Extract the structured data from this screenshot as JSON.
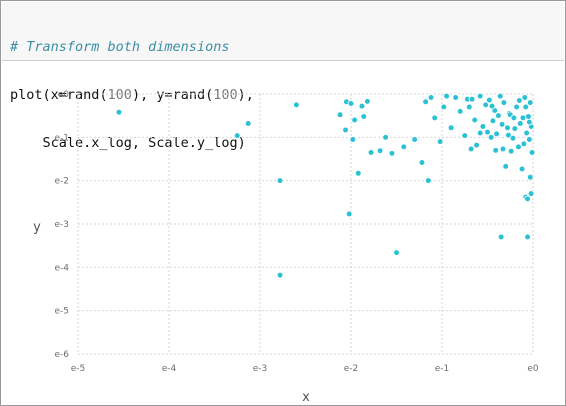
{
  "code": {
    "line1": "# Transform both dimensions",
    "line2_prefix": "plot(x=rand(",
    "line2_num1": "100",
    "line2_mid": "), y=rand(",
    "line2_num2": "100",
    "line2_suffix": "),",
    "line3": "    Scale.x_log, Scale.y_log)"
  },
  "chart_data": {
    "type": "scatter",
    "xlabel": "x",
    "ylabel": "y",
    "x_scale": "log",
    "y_scale": "log",
    "xlim_exp": [
      -5,
      0
    ],
    "ylim_exp": [
      -6,
      0
    ],
    "x_ticks": [
      "e-5",
      "e-4",
      "e-3",
      "e-2",
      "e-1",
      "e0"
    ],
    "y_ticks": [
      "e0",
      "e-1",
      "e-2",
      "e-3",
      "e-4",
      "e-5",
      "e-6"
    ],
    "grid": true,
    "point_color": "#2bc1d5",
    "points_exp": [
      [
        -4.55,
        -0.42
      ],
      [
        -3.25,
        -0.96
      ],
      [
        -3.13,
        -0.68
      ],
      [
        -2.78,
        -2.0
      ],
      [
        -2.78,
        -4.18
      ],
      [
        -2.6,
        -0.25
      ],
      [
        -2.12,
        -0.48
      ],
      [
        -2.06,
        -0.83
      ],
      [
        -2.05,
        -0.18
      ],
      [
        -2.02,
        -2.77
      ],
      [
        -2.0,
        -0.22
      ],
      [
        -1.98,
        -1.05
      ],
      [
        -1.96,
        -0.6
      ],
      [
        -1.92,
        -1.83
      ],
      [
        -1.88,
        -0.28
      ],
      [
        -1.86,
        -0.52
      ],
      [
        -1.82,
        -0.17
      ],
      [
        -1.78,
        -1.35
      ],
      [
        -1.68,
        -1.31
      ],
      [
        -1.62,
        -1.0
      ],
      [
        -1.55,
        -1.37
      ],
      [
        -1.5,
        -3.66
      ],
      [
        -1.42,
        -1.22
      ],
      [
        -1.3,
        -1.05
      ],
      [
        -1.22,
        -1.58
      ],
      [
        -1.18,
        -0.18
      ],
      [
        -1.15,
        -2.0
      ],
      [
        -1.12,
        -0.08
      ],
      [
        -1.08,
        -0.55
      ],
      [
        -1.02,
        -1.1
      ],
      [
        -0.98,
        -0.3
      ],
      [
        -0.95,
        -0.05
      ],
      [
        -0.9,
        -0.78
      ],
      [
        -0.85,
        -0.08
      ],
      [
        -0.8,
        -0.4
      ],
      [
        -0.75,
        -0.96
      ],
      [
        -0.72,
        -0.12
      ],
      [
        -0.7,
        -0.3
      ],
      [
        -0.68,
        -1.27
      ],
      [
        -0.64,
        -0.6
      ],
      [
        -0.62,
        -1.18
      ],
      [
        -0.58,
        -0.05
      ],
      [
        -0.55,
        -0.75
      ],
      [
        -0.52,
        -0.25
      ],
      [
        -0.5,
        -0.88
      ],
      [
        -0.48,
        -0.14
      ],
      [
        -0.46,
        -1.0
      ],
      [
        -0.44,
        -0.62
      ],
      [
        -0.42,
        -0.38
      ],
      [
        -0.4,
        -0.92
      ],
      [
        -0.38,
        -0.5
      ],
      [
        -0.36,
        -0.05
      ],
      [
        -0.34,
        -0.7
      ],
      [
        -0.32,
        -0.2
      ],
      [
        -0.3,
        -1.67
      ],
      [
        -0.28,
        -0.78
      ],
      [
        -0.26,
        -0.45
      ],
      [
        -0.24,
        -1.32
      ],
      [
        -0.22,
        -1.02
      ],
      [
        -0.2,
        -0.8
      ],
      [
        -0.18,
        -0.3
      ],
      [
        -0.16,
        -1.22
      ],
      [
        -0.14,
        -0.68
      ],
      [
        -0.12,
        -1.73
      ],
      [
        -0.11,
        -0.55
      ],
      [
        -0.1,
        -1.15
      ],
      [
        -0.09,
        -0.08
      ],
      [
        -0.08,
        -0.3
      ],
      [
        -0.07,
        -0.9
      ],
      [
        -0.06,
        -3.3
      ],
      [
        -0.05,
        -0.52
      ],
      [
        -0.04,
        -1.05
      ],
      [
        -0.03,
        -0.2
      ],
      [
        -0.02,
        -0.75
      ],
      [
        -0.01,
        -1.35
      ],
      [
        -0.25,
        -0.48
      ],
      [
        -0.33,
        -1.27
      ],
      [
        -0.45,
        -0.28
      ],
      [
        -0.58,
        -0.9
      ],
      [
        -0.67,
        -0.12
      ],
      [
        -0.08,
        -2.38
      ],
      [
        -0.06,
        -2.42
      ],
      [
        -0.03,
        -1.92
      ],
      [
        -0.02,
        -2.3
      ],
      [
        -0.04,
        -0.65
      ],
      [
        -0.15,
        -0.15
      ],
      [
        -0.21,
        -0.55
      ],
      [
        -0.27,
        -0.95
      ],
      [
        -0.35,
        -3.3
      ],
      [
        -0.41,
        -1.3
      ]
    ]
  }
}
